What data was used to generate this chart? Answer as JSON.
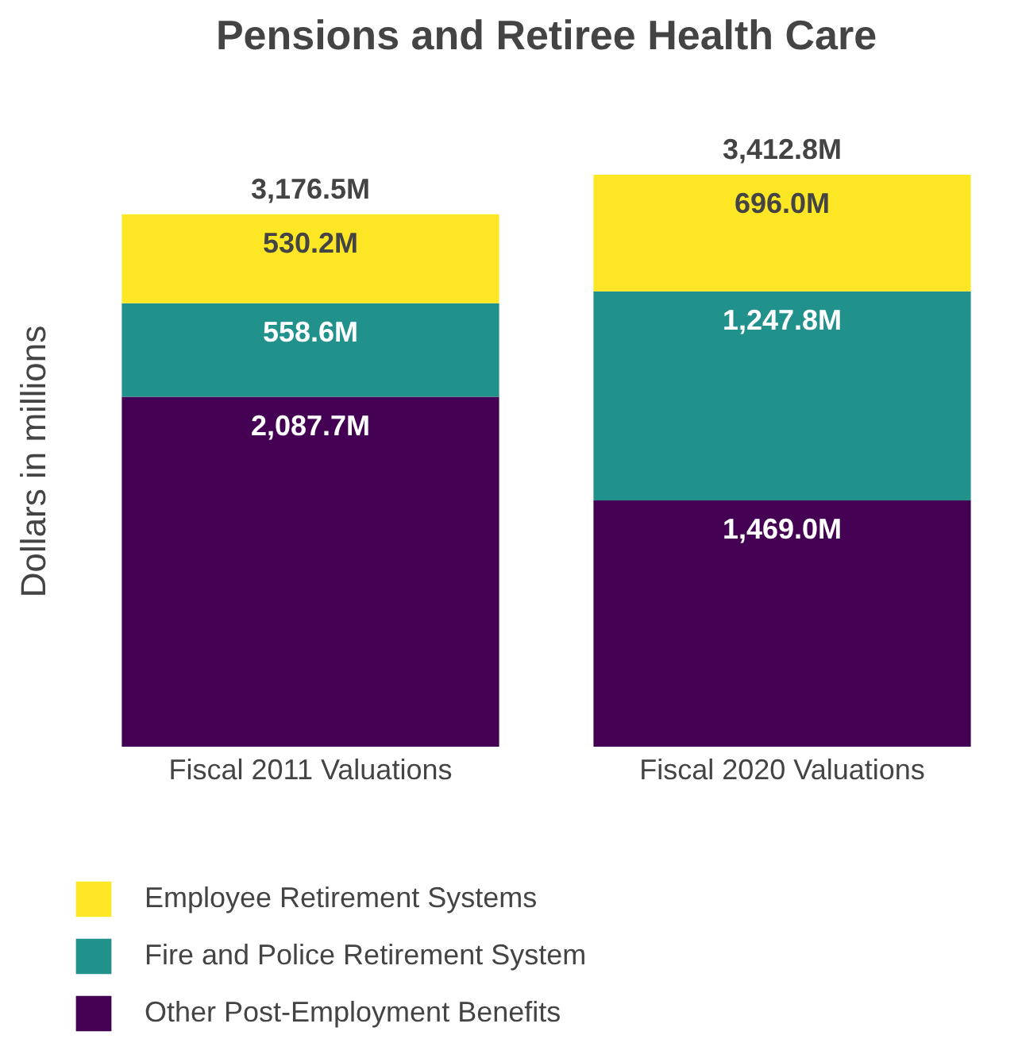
{
  "chart_data": {
    "type": "bar",
    "title": "Pensions and Retiree Health Care",
    "ylabel": "Dollars in millions",
    "categories": [
      "Fiscal 2011 Valuations",
      "Fiscal 2020 Valuations"
    ],
    "stacked": true,
    "legend": "bottom",
    "series": [
      {
        "name": "Other Post-Employment Benefits",
        "color": "#440154",
        "values": [
          2087.7,
          1469.0
        ],
        "value_labels": [
          "2,087.7M",
          "1,469.0M"
        ]
      },
      {
        "name": "Fire and Police Retirement System",
        "color": "#21918c",
        "values": [
          558.6,
          1247.8
        ],
        "value_labels": [
          "558.6M",
          "1,247.8M"
        ]
      },
      {
        "name": "Employee Retirement Systems",
        "color": "#fde725",
        "values": [
          530.2,
          696.0
        ],
        "value_labels": [
          "530.2M",
          "696.0M"
        ]
      }
    ],
    "totals": [
      "3,176.5M",
      "3,412.8M"
    ]
  }
}
